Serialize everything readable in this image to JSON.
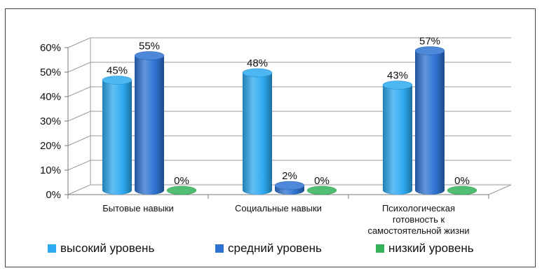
{
  "chart_data": {
    "type": "bar",
    "style": "3d-cylinder",
    "categories": [
      "Бытовые навыки",
      "Социальные навыки",
      "Психологическая готовность к самостоятельной жизни"
    ],
    "category_lines": [
      [
        "Бытовые навыки"
      ],
      [
        "Социальные навыки"
      ],
      [
        "Психологическая",
        "готовность к",
        "самостоятельной жизни"
      ]
    ],
    "series": [
      {
        "name": "высокий уровень",
        "values": [
          45,
          48,
          43
        ],
        "color": "#2EAAF2"
      },
      {
        "name": "средний уровень",
        "values": [
          55,
          2,
          57
        ],
        "color": "#2E73D2"
      },
      {
        "name": "низкий уровень",
        "values": [
          0,
          0,
          0
        ],
        "color": "#33B25A"
      }
    ],
    "data_labels": [
      [
        "45%",
        "48%",
        "43%"
      ],
      [
        "55%",
        "2%",
        "57%"
      ],
      [
        "0%",
        "0%",
        "0%"
      ]
    ],
    "yticks": [
      "0%",
      "10%",
      "20%",
      "30%",
      "40%",
      "50%",
      "60%"
    ],
    "ylim": [
      0,
      60
    ],
    "grid": true,
    "legend_position": "bottom"
  }
}
